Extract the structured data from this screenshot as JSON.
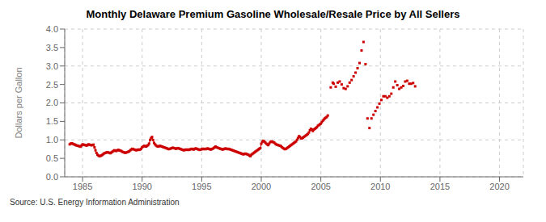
{
  "chart_data": {
    "type": "line",
    "title": "Monthly Delaware Premium Gasoline Wholesale/Resale Price by All Sellers",
    "y_label": "Dollars per Gallon",
    "source": "Source: U.S. Energy Information Administration",
    "color": "#cc0000",
    "marker": "square",
    "line_style": "solid",
    "grid": true,
    "xlim": [
      1983.5,
      2022.0
    ],
    "ylim": [
      0.0,
      4.0
    ],
    "xticks": [
      1985,
      1990,
      1995,
      2000,
      2005,
      2010,
      2015,
      2020
    ],
    "yticks": [
      {
        "value": 0.0,
        "label": "0.0"
      },
      0.5,
      {
        "value": 1.0,
        "label": "1.0"
      },
      1.5,
      {
        "value": 2.0,
        "label": "2.0"
      },
      2.5,
      {
        "value": 3.0,
        "label": "3.0"
      },
      3.5,
      {
        "value": 4.0,
        "label": "4.0"
      }
    ],
    "x": [
      1983.917,
      1984.0,
      1984.083,
      1984.167,
      1984.25,
      1984.333,
      1984.417,
      1984.5,
      1984.583,
      1984.667,
      1984.75,
      1984.833,
      1984.917,
      1985.0,
      1985.083,
      1985.167,
      1985.25,
      1985.333,
      1985.417,
      1985.5,
      1985.583,
      1985.667,
      1985.75,
      1985.833,
      1985.917,
      1986.0,
      1986.083,
      1986.167,
      1986.25,
      1986.333,
      1986.417,
      1986.5,
      1986.583,
      1986.667,
      1986.75,
      1986.833,
      1986.917,
      1987.0,
      1987.083,
      1987.167,
      1987.25,
      1987.333,
      1987.417,
      1987.5,
      1987.583,
      1987.667,
      1987.75,
      1987.833,
      1987.917,
      1988.0,
      1988.083,
      1988.167,
      1988.25,
      1988.333,
      1988.417,
      1988.5,
      1988.583,
      1988.667,
      1988.75,
      1988.833,
      1988.917,
      1989.0,
      1989.083,
      1989.167,
      1989.25,
      1989.333,
      1989.417,
      1989.5,
      1989.583,
      1989.667,
      1989.75,
      1989.833,
      1989.917,
      1990.0,
      1990.083,
      1990.167,
      1990.25,
      1990.333,
      1990.417,
      1990.5,
      1990.583,
      1990.667,
      1990.75,
      1990.833,
      1990.917,
      1991.0,
      1991.083,
      1991.167,
      1991.25,
      1991.333,
      1991.417,
      1991.5,
      1991.583,
      1991.667,
      1991.75,
      1991.833,
      1991.917,
      1992.0,
      1992.083,
      1992.167,
      1992.25,
      1992.333,
      1992.417,
      1992.5,
      1992.583,
      1992.667,
      1992.75,
      1992.833,
      1992.917,
      1993.0,
      1993.083,
      1993.167,
      1993.25,
      1993.333,
      1993.417,
      1993.5,
      1993.583,
      1993.667,
      1993.75,
      1993.833,
      1993.917,
      1994.0,
      1994.083,
      1994.167,
      1994.25,
      1994.333,
      1994.417,
      1994.5,
      1994.583,
      1994.667,
      1994.75,
      1994.833,
      1994.917,
      1995.0,
      1995.083,
      1995.167,
      1995.25,
      1995.333,
      1995.417,
      1995.5,
      1995.583,
      1995.667,
      1995.75,
      1995.833,
      1995.917,
      1996.0,
      1996.083,
      1996.167,
      1996.25,
      1996.333,
      1996.417,
      1996.5,
      1996.583,
      1996.667,
      1996.75,
      1996.833,
      1996.917,
      1997.0,
      1997.083,
      1997.167,
      1997.25,
      1997.333,
      1997.417,
      1997.5,
      1997.583,
      1997.667,
      1997.75,
      1997.833,
      1997.917,
      1998.0,
      1998.083,
      1998.167,
      1998.25,
      1998.333,
      1998.417,
      1998.5,
      1998.583,
      1998.667,
      1998.75,
      1998.833,
      1998.917,
      1999.0,
      1999.083,
      1999.167,
      1999.25,
      1999.333,
      1999.417,
      1999.5,
      1999.583,
      1999.667,
      1999.75,
      1999.833,
      1999.917,
      2000.0,
      2000.083,
      2000.167,
      2000.25,
      2000.333,
      2000.417,
      2000.5,
      2000.583,
      2000.667,
      2000.75,
      2000.833,
      2000.917,
      2001.0,
      2001.083,
      2001.167,
      2001.25,
      2001.333,
      2001.417,
      2001.5,
      2001.583,
      2001.667,
      2001.75,
      2001.833,
      2001.917,
      2002.0,
      2002.083,
      2002.167,
      2002.25,
      2002.333,
      2002.417,
      2002.5,
      2002.583,
      2002.667,
      2002.75,
      2002.833,
      2002.917,
      2003.0,
      2003.083,
      2003.167,
      2003.25,
      2003.333,
      2003.417,
      2003.5,
      2003.583,
      2003.667,
      2003.75,
      2003.833,
      2003.917,
      2004.0,
      2004.083,
      2004.167,
      2004.25,
      2004.333,
      2004.417,
      2004.5,
      2004.583,
      2004.667,
      2004.75,
      2004.833,
      2004.917,
      2005.0,
      2005.083,
      2005.167,
      2005.25,
      2005.333,
      2005.417,
      2005.5,
      2005.583,
      2005.667,
      2005.75,
      2005.833,
      2005.917,
      2006.0,
      2006.083,
      2006.167,
      2006.25,
      2006.333,
      2006.417,
      2006.5,
      2006.583,
      2006.667,
      2006.75,
      2006.833,
      2006.917,
      2007.0,
      2007.083,
      2007.167,
      2007.25,
      2007.333,
      2007.417,
      2007.5,
      2007.583,
      2007.667,
      2007.75,
      2007.833,
      2007.917,
      2008.0,
      2008.083,
      2008.167,
      2008.25,
      2008.333,
      2008.417,
      2008.5,
      2008.583,
      2008.667,
      2008.75,
      2008.833,
      2008.917,
      2009.0,
      2009.083,
      2009.167,
      2009.25,
      2009.333,
      2009.417,
      2009.5,
      2009.583,
      2009.667,
      2009.75,
      2009.833,
      2009.917,
      2010.0,
      2010.083,
      2010.167,
      2010.25,
      2010.333,
      2010.417,
      2010.5,
      2010.583,
      2010.667,
      2010.75,
      2010.833,
      2010.917,
      2011.0,
      2011.083,
      2011.167,
      2011.25,
      2011.333,
      2011.417,
      2011.5,
      2011.583,
      2011.667,
      2011.75,
      2011.833,
      2011.917,
      2012.0,
      2012.083,
      2012.167,
      2012.25,
      2012.333,
      2012.417,
      2012.5,
      2012.583,
      2012.667,
      2012.75,
      2012.833,
      2012.917
    ],
    "values": [
      0.878,
      0.898,
      0.905,
      0.898,
      0.88,
      0.875,
      0.858,
      0.85,
      0.84,
      0.835,
      0.825,
      0.815,
      0.85,
      0.878,
      0.87,
      0.862,
      0.855,
      0.845,
      0.858,
      0.878,
      0.87,
      0.862,
      0.852,
      0.862,
      0.87,
      0.798,
      0.718,
      0.645,
      0.598,
      0.575,
      0.555,
      0.565,
      0.578,
      0.595,
      0.618,
      0.638,
      0.648,
      0.658,
      0.668,
      0.658,
      0.648,
      0.638,
      0.658,
      0.678,
      0.698,
      0.718,
      0.708,
      0.698,
      0.718,
      0.728,
      0.718,
      0.708,
      0.698,
      0.678,
      0.668,
      0.658,
      0.648,
      0.658,
      0.668,
      0.678,
      0.688,
      0.718,
      0.738,
      0.758,
      0.748,
      0.738,
      0.728,
      0.718,
      0.728,
      0.738,
      0.728,
      0.738,
      0.758,
      0.798,
      0.818,
      0.838,
      0.828,
      0.818,
      0.838,
      0.858,
      0.898,
      0.998,
      1.048,
      1.078,
      0.998,
      0.918,
      0.878,
      0.848,
      0.828,
      0.818,
      0.828,
      0.838,
      0.828,
      0.818,
      0.808,
      0.798,
      0.788,
      0.778,
      0.768,
      0.758,
      0.748,
      0.758,
      0.768,
      0.778,
      0.788,
      0.778,
      0.768,
      0.758,
      0.768,
      0.778,
      0.768,
      0.758,
      0.748,
      0.738,
      0.728,
      0.718,
      0.728,
      0.738,
      0.728,
      0.738,
      0.728,
      0.738,
      0.748,
      0.758,
      0.748,
      0.738,
      0.758,
      0.768,
      0.758,
      0.748,
      0.738,
      0.728,
      0.738,
      0.748,
      0.758,
      0.748,
      0.758,
      0.748,
      0.758,
      0.768,
      0.758,
      0.748,
      0.738,
      0.748,
      0.758,
      0.778,
      0.798,
      0.818,
      0.798,
      0.788,
      0.778,
      0.768,
      0.758,
      0.748,
      0.738,
      0.748,
      0.758,
      0.768,
      0.758,
      0.748,
      0.758,
      0.748,
      0.738,
      0.728,
      0.718,
      0.708,
      0.698,
      0.688,
      0.678,
      0.668,
      0.658,
      0.648,
      0.638,
      0.628,
      0.618,
      0.608,
      0.618,
      0.628,
      0.618,
      0.608,
      0.598,
      0.575,
      0.558,
      0.595,
      0.618,
      0.638,
      0.658,
      0.678,
      0.698,
      0.718,
      0.738,
      0.758,
      0.775,
      0.895,
      0.945,
      0.975,
      0.958,
      0.928,
      0.898,
      0.878,
      0.858,
      0.898,
      0.938,
      0.958,
      0.948,
      0.938,
      0.928,
      0.898,
      0.878,
      0.868,
      0.858,
      0.848,
      0.838,
      0.828,
      0.798,
      0.778,
      0.758,
      0.748,
      0.758,
      0.778,
      0.798,
      0.818,
      0.838,
      0.858,
      0.878,
      0.898,
      0.918,
      0.938,
      0.958,
      1.0,
      1.05,
      1.1,
      1.08,
      1.04,
      1.04,
      1.06,
      1.08,
      1.1,
      1.12,
      1.14,
      1.16,
      1.2,
      1.26,
      1.3,
      1.28,
      1.24,
      1.28,
      1.3,
      1.32,
      1.34,
      1.38,
      1.4,
      1.42,
      1.44,
      1.48,
      1.52,
      1.55,
      1.58,
      1.6,
      1.62,
      1.66,
      null,
      null,
      2.42,
      null,
      2.55,
      2.52,
      null,
      2.44,
      null,
      2.55,
      null,
      2.58,
      null,
      2.5,
      null,
      2.4,
      null,
      2.38,
      null,
      2.45,
      null,
      2.55,
      null,
      2.62,
      null,
      2.72,
      null,
      2.82,
      null,
      2.94,
      null,
      3.08,
      null,
      3.42,
      null,
      3.65,
      null,
      3.05,
      null,
      1.58,
      null,
      1.32,
      null,
      1.58,
      null,
      1.68,
      null,
      1.78,
      null,
      1.88,
      null,
      1.98,
      null,
      2.08,
      null,
      2.18,
      null,
      2.18,
      null,
      2.14,
      null,
      2.18,
      null,
      2.25,
      null,
      2.42,
      null,
      2.58,
      null,
      2.48,
      null,
      2.38,
      null,
      2.42,
      null,
      2.46,
      null,
      2.58,
      null,
      2.6,
      null,
      2.52,
      null,
      2.52,
      null,
      2.54,
      null,
      2.45
    ]
  }
}
